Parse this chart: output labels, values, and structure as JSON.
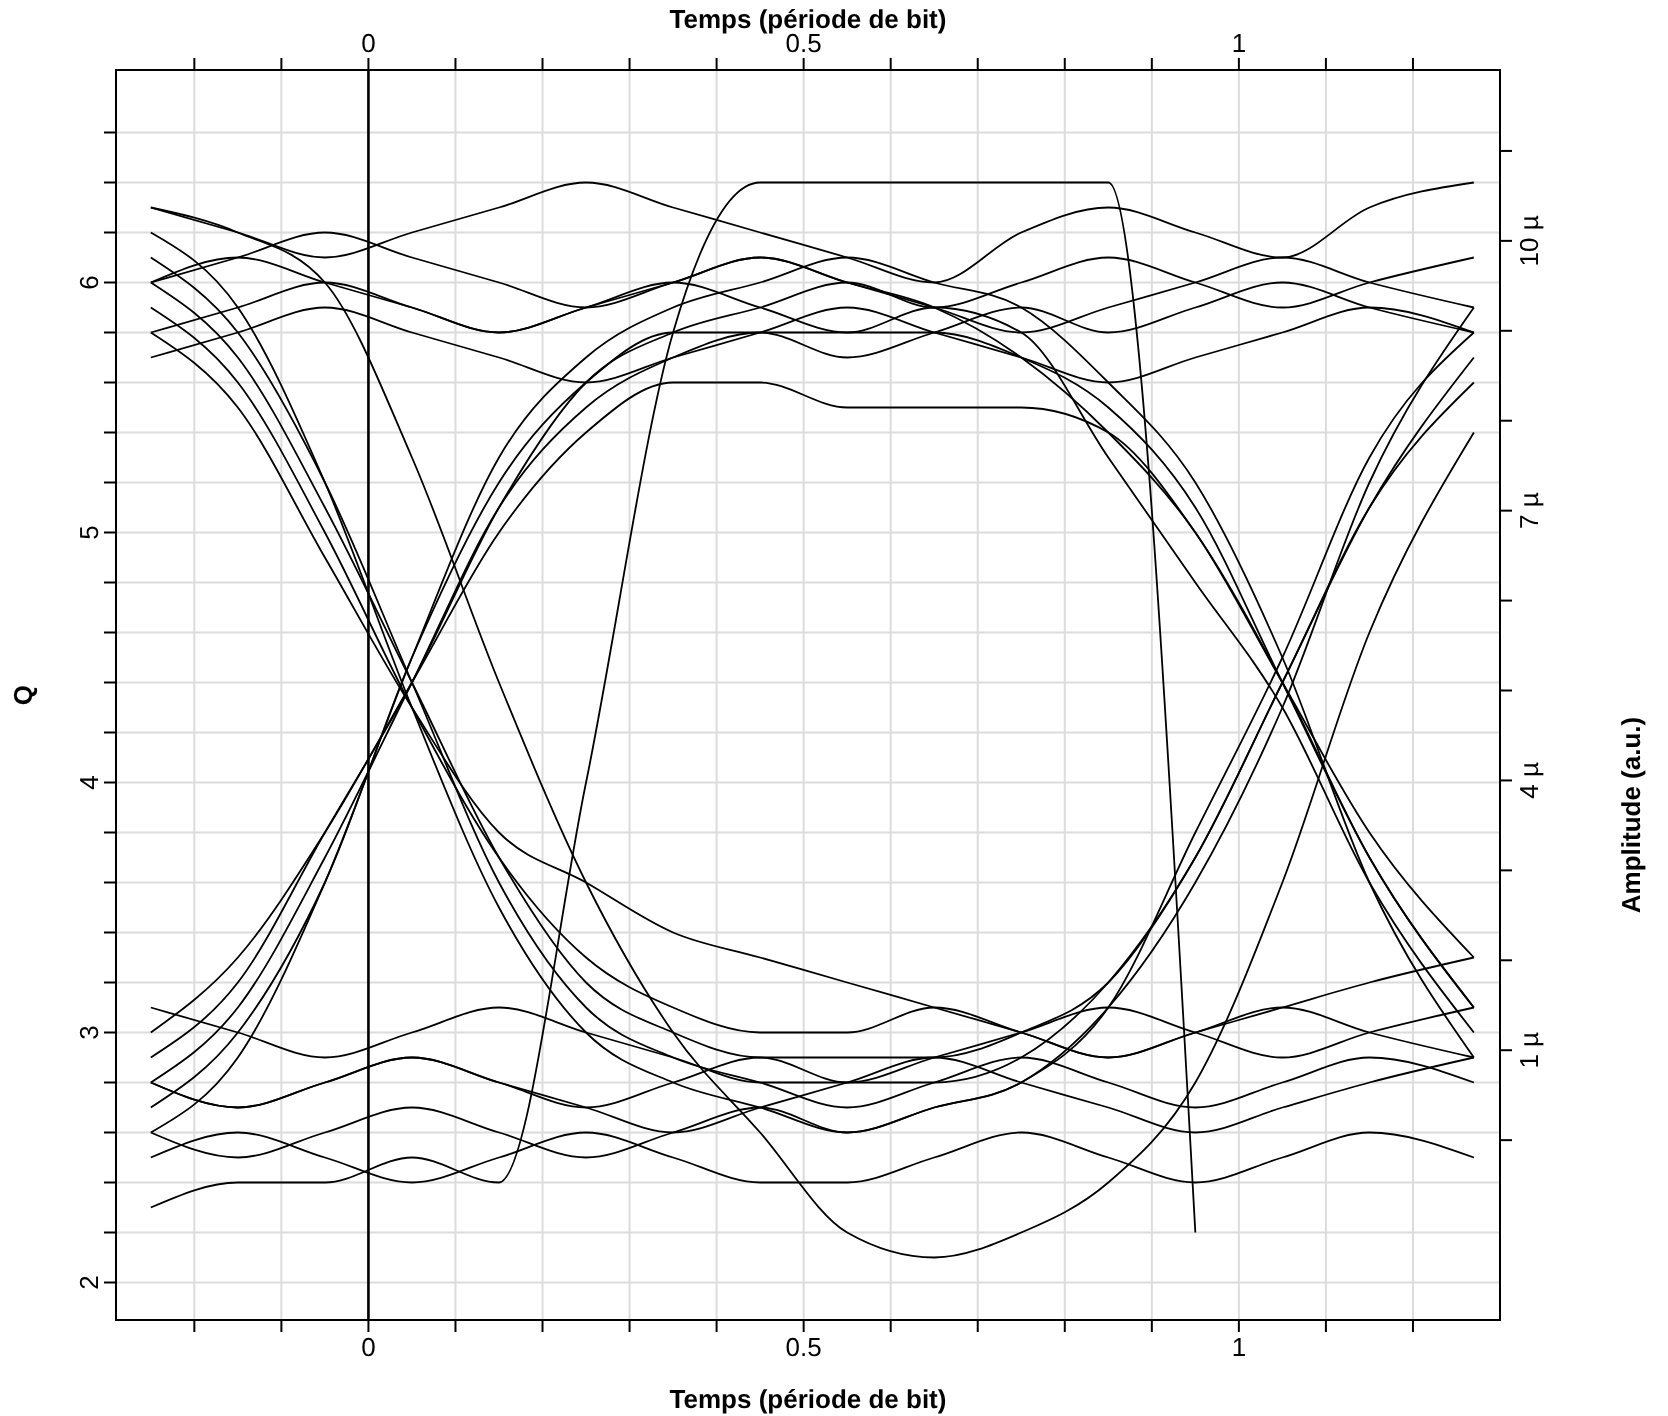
{
  "chart_data": {
    "type": "line",
    "xlabel": "Temps (période de bit)",
    "x2label": "Temps (période de bit)",
    "ylabel": "Q",
    "y2label": "Amplitude (a.u.)",
    "xlim": [
      -0.29,
      1.3
    ],
    "x2lim": [
      -0.29,
      1.3
    ],
    "xticks": [
      {
        "value": -0.2,
        "label": null
      },
      {
        "value": -0.1,
        "label": null
      },
      0,
      {
        "value": 0.1,
        "label": null
      },
      {
        "value": 0.2,
        "label": null
      },
      {
        "value": 0.3,
        "label": null
      },
      {
        "value": 0.4,
        "label": null
      },
      0.5,
      {
        "value": 0.6,
        "label": null
      },
      {
        "value": 0.7,
        "label": null
      },
      {
        "value": 0.8,
        "label": null
      },
      {
        "value": 0.9,
        "label": null
      },
      1,
      {
        "value": 1.1,
        "label": null
      },
      {
        "value": 1.2,
        "label": null
      }
    ],
    "x2ticks": [
      {
        "value": -0.2,
        "label": null
      },
      {
        "value": -0.1,
        "label": null
      },
      0,
      {
        "value": 0.1,
        "label": null
      },
      {
        "value": 0.2,
        "label": null
      },
      {
        "value": 0.3,
        "label": null
      },
      {
        "value": 0.4,
        "label": null
      },
      0.5,
      {
        "value": 0.6,
        "label": null
      },
      {
        "value": 0.7,
        "label": null
      },
      {
        "value": 0.8,
        "label": null
      },
      {
        "value": 0.9,
        "label": null
      },
      1,
      {
        "value": 1.1,
        "label": null
      },
      {
        "value": 1.2,
        "label": null
      }
    ],
    "ylim": [
      1.85,
      6.85
    ],
    "yticks": [
      2,
      {
        "value": 2.2,
        "label": null
      },
      {
        "value": 2.4,
        "label": null
      },
      {
        "value": 2.6,
        "label": null
      },
      {
        "value": 2.8,
        "label": null
      },
      3,
      {
        "value": 3.2,
        "label": null
      },
      {
        "value": 3.4,
        "label": null
      },
      {
        "value": 3.6,
        "label": null
      },
      {
        "value": 3.8,
        "label": null
      },
      4,
      {
        "value": 4.2,
        "label": null
      },
      {
        "value": 4.4,
        "label": null
      },
      {
        "value": 4.6,
        "label": null
      },
      {
        "value": 4.8,
        "label": null
      },
      5,
      {
        "value": 5.2,
        "label": null
      },
      {
        "value": 5.4,
        "label": null
      },
      {
        "value": 5.6,
        "label": null
      },
      {
        "value": 5.8,
        "label": null
      },
      6,
      {
        "value": 6.2,
        "label": null
      },
      {
        "value": 6.4,
        "label": null
      },
      {
        "value": 6.6,
        "label": null
      }
    ],
    "y2lim": [
      -2,
      11.9
    ],
    "y2ticks": [
      {
        "value": 0,
        "label": null
      },
      {
        "value": 1,
        "label": "1 µ"
      },
      {
        "value": 2,
        "label": null
      },
      {
        "value": 3,
        "label": null
      },
      {
        "value": 4,
        "label": "4 µ"
      },
      {
        "value": 5,
        "label": null
      },
      {
        "value": 6,
        "label": null
      },
      {
        "value": 7,
        "label": "7 µ"
      },
      {
        "value": 8,
        "label": null
      },
      {
        "value": 9,
        "label": null
      },
      {
        "value": 10,
        "label": "10 µ"
      },
      {
        "value": 11,
        "label": null
      }
    ],
    "grid": true,
    "marker": "none",
    "line_style": "solid",
    "ref_lines": [
      {
        "axis": "x",
        "value": 0,
        "color": "#000000"
      }
    ],
    "x": [
      -0.25,
      -0.15,
      -0.05,
      0.05,
      0.15,
      0.25,
      0.35,
      0.45,
      0.55,
      0.65,
      0.75,
      0.85,
      0.95,
      1.05,
      1.15,
      1.27
    ],
    "series": [
      {
        "color": "#000000",
        "values": [
          6.0,
          6.1,
          6.0,
          5.9,
          5.8,
          5.9,
          6.0,
          6.1,
          6.0,
          5.9,
          5.8,
          5.9,
          6.0,
          6.1,
          6.0,
          5.9
        ]
      },
      {
        "color": "#000000",
        "values": [
          6.3,
          6.2,
          6.1,
          6.2,
          6.3,
          6.4,
          6.3,
          6.2,
          6.1,
          6.0,
          6.2,
          6.3,
          6.2,
          6.1,
          6.3,
          6.4
        ]
      },
      {
        "color": "#000000",
        "values": [
          5.7,
          5.8,
          5.9,
          5.8,
          5.7,
          5.6,
          5.7,
          5.8,
          5.9,
          5.8,
          5.7,
          5.6,
          5.7,
          5.8,
          5.9,
          5.8
        ]
      },
      {
        "color": "#000000",
        "values": [
          6.0,
          5.7,
          5.1,
          4.4,
          3.7,
          3.2,
          3.0,
          2.9,
          2.9,
          2.9,
          3.0,
          3.2,
          3.7,
          4.4,
          5.1,
          5.7
        ]
      },
      {
        "color": "#000000",
        "values": [
          6.2,
          5.9,
          5.2,
          4.3,
          3.5,
          3.0,
          2.8,
          2.7,
          2.6,
          2.7,
          2.8,
          3.1,
          3.6,
          4.3,
          5.2,
          5.9
        ]
      },
      {
        "color": "#000000",
        "values": [
          2.8,
          3.1,
          3.7,
          4.4,
          5.1,
          5.5,
          5.7,
          5.8,
          5.8,
          5.8,
          5.7,
          5.5,
          5.1,
          4.4,
          3.7,
          3.1
        ]
      },
      {
        "color": "#000000",
        "values": [
          2.6,
          2.9,
          3.6,
          4.5,
          5.3,
          5.7,
          5.9,
          6.0,
          6.1,
          6.0,
          5.9,
          5.6,
          5.2,
          4.5,
          3.6,
          2.9
        ]
      },
      {
        "color": "#000000",
        "values": [
          3.0,
          3.3,
          3.8,
          4.4,
          5.0,
          5.4,
          5.6,
          5.6,
          5.5,
          5.5,
          5.5,
          5.4,
          5.0,
          4.4,
          3.8,
          3.3
        ]
      },
      {
        "color": "#000000",
        "values": [
          2.8,
          2.7,
          2.8,
          2.9,
          2.8,
          2.7,
          2.6,
          2.7,
          2.8,
          2.9,
          2.8,
          2.7,
          2.6,
          2.7,
          2.8,
          2.9
        ]
      },
      {
        "color": "#000000",
        "values": [
          2.5,
          2.6,
          2.5,
          2.4,
          2.5,
          2.6,
          2.5,
          2.4,
          2.4,
          2.5,
          2.6,
          2.5,
          2.4,
          2.5,
          2.6,
          2.5
        ]
      },
      {
        "color": "#000000",
        "values": [
          3.1,
          3.0,
          2.9,
          3.0,
          3.1,
          3.0,
          2.9,
          2.8,
          2.8,
          2.9,
          3.0,
          3.1,
          3.0,
          2.9,
          3.0,
          3.1
        ]
      },
      {
        "color": "#000000",
        "values": [
          6.1,
          5.8,
          5.2,
          4.4,
          3.6,
          3.1,
          2.9,
          2.8,
          2.7,
          2.8,
          2.9,
          2.8,
          2.7,
          2.8,
          2.9,
          2.8
        ]
      },
      {
        "color": "#000000",
        "values": [
          5.9,
          5.6,
          5.0,
          4.3,
          3.7,
          3.3,
          3.1,
          3.0,
          3.0,
          3.1,
          3.0,
          2.9,
          3.0,
          3.1,
          3.0,
          2.9
        ]
      },
      {
        "color": "#000000",
        "values": [
          2.9,
          3.2,
          3.8,
          4.4,
          5.1,
          5.6,
          5.8,
          5.9,
          6.0,
          5.9,
          6.0,
          6.1,
          6.0,
          5.9,
          6.0,
          6.1
        ]
      },
      {
        "color": "#000000",
        "values": [
          2.7,
          3.0,
          3.6,
          4.5,
          5.2,
          5.6,
          5.8,
          5.8,
          5.7,
          5.8,
          5.9,
          5.8,
          5.9,
          6.0,
          5.9,
          5.8
        ]
      },
      {
        "color": "#000000",
        "values": [
          6.0,
          6.1,
          6.2,
          6.1,
          6.0,
          5.9,
          6.0,
          6.1,
          6.0,
          5.9,
          5.7,
          5.4,
          5.0,
          4.4,
          3.7,
          3.1
        ]
      },
      {
        "color": "#000000",
        "values": [
          5.8,
          5.9,
          6.0,
          5.9,
          5.8,
          5.9,
          6.0,
          5.9,
          5.8,
          5.9,
          5.8,
          5.3,
          4.8,
          4.3,
          3.6,
          3.0
        ]
      },
      {
        "color": "#000000",
        "values": [
          2.8,
          2.7,
          2.8,
          2.9,
          2.8,
          2.7,
          2.8,
          2.9,
          2.8,
          2.8,
          2.9,
          3.2,
          3.7,
          4.4,
          5.1,
          5.6
        ]
      },
      {
        "color": "#000000",
        "values": [
          2.6,
          2.5,
          2.6,
          2.7,
          2.6,
          2.5,
          2.6,
          2.7,
          2.6,
          2.7,
          2.8,
          3.1,
          3.8,
          4.5,
          5.3,
          5.8
        ]
      },
      {
        "color": "#000000",
        "values": [
          5.8,
          5.5,
          4.9,
          4.3,
          3.8,
          3.6,
          3.4,
          3.3,
          3.2,
          3.1,
          3.0,
          2.9,
          3.0,
          3.1,
          3.2,
          3.3
        ]
      },
      {
        "color": "#000000",
        "values": [
          2.3,
          2.4,
          2.4,
          2.5,
          2.4,
          4.0,
          5.8,
          6.4,
          6.4,
          6.4,
          6.4,
          6.4,
          2.2,
          null,
          null,
          null
        ]
      },
      {
        "color": "#000000",
        "values": [
          6.3,
          6.2,
          6.0,
          5.3,
          4.4,
          3.6,
          3.0,
          2.6,
          2.2,
          2.1,
          2.2,
          2.4,
          2.8,
          3.6,
          4.6,
          5.4
        ]
      }
    ]
  }
}
